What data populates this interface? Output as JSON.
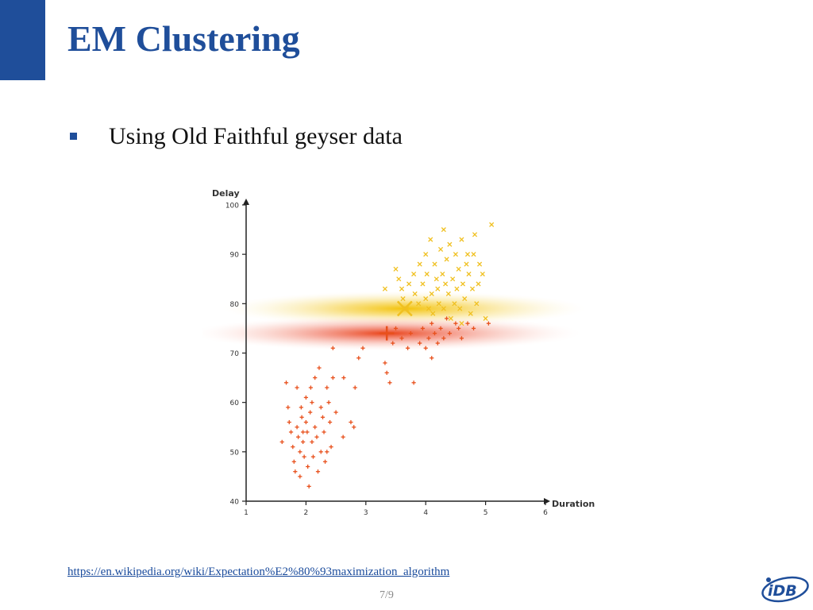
{
  "slide": {
    "title": "EM Clustering",
    "bullets": [
      "Using Old Faithful geyser data"
    ],
    "source_link": "https://en.wikipedia.org/wiki/Expectation%E2%80%93maximization_algorithm",
    "page_number": "7/9",
    "logo_text": "iDB",
    "accent_color": "#1f4e9a"
  },
  "chart_data": {
    "type": "scatter",
    "xlabel": "Duration",
    "ylabel": "Delay",
    "xlim": [
      1,
      6
    ],
    "ylim": [
      40,
      100
    ],
    "x_ticks": [
      1,
      2,
      3,
      4,
      5,
      6
    ],
    "y_ticks": [
      40,
      50,
      60,
      70,
      80,
      90,
      100
    ],
    "grid": false,
    "series": [
      {
        "marker": "plus",
        "color": "#e8501c",
        "center": {
          "x": 3.35,
          "y": 74
        },
        "points": [
          [
            1.6,
            52
          ],
          [
            1.67,
            64
          ],
          [
            1.7,
            59
          ],
          [
            1.72,
            56
          ],
          [
            1.75,
            54
          ],
          [
            1.78,
            51
          ],
          [
            1.8,
            48
          ],
          [
            1.82,
            46
          ],
          [
            1.85,
            63
          ],
          [
            1.85,
            55
          ],
          [
            1.87,
            53
          ],
          [
            1.9,
            50
          ],
          [
            1.9,
            45
          ],
          [
            1.92,
            59
          ],
          [
            1.93,
            57
          ],
          [
            1.95,
            52
          ],
          [
            1.97,
            49
          ],
          [
            2.0,
            61
          ],
          [
            2.0,
            56
          ],
          [
            2.02,
            54
          ],
          [
            2.03,
            47
          ],
          [
            2.05,
            43
          ],
          [
            2.07,
            58
          ],
          [
            2.1,
            60
          ],
          [
            2.1,
            52
          ],
          [
            2.12,
            49
          ],
          [
            2.15,
            65
          ],
          [
            2.15,
            55
          ],
          [
            2.18,
            53
          ],
          [
            2.2,
            46
          ],
          [
            2.22,
            67
          ],
          [
            2.25,
            59
          ],
          [
            2.25,
            50
          ],
          [
            2.28,
            57
          ],
          [
            2.3,
            54
          ],
          [
            2.32,
            48
          ],
          [
            2.35,
            63
          ],
          [
            2.38,
            60
          ],
          [
            2.4,
            56
          ],
          [
            2.42,
            51
          ],
          [
            2.45,
            65
          ],
          [
            2.5,
            58
          ],
          [
            2.62,
            53
          ],
          [
            2.63,
            65
          ],
          [
            2.75,
            56
          ],
          [
            2.8,
            55
          ],
          [
            2.82,
            63
          ],
          [
            2.88,
            69
          ],
          [
            2.95,
            71
          ],
          [
            3.32,
            68
          ],
          [
            3.35,
            66
          ],
          [
            3.4,
            64
          ],
          [
            3.45,
            72
          ],
          [
            3.5,
            75
          ],
          [
            3.6,
            73
          ],
          [
            3.7,
            71
          ],
          [
            3.75,
            74
          ],
          [
            3.8,
            64
          ],
          [
            3.9,
            72
          ],
          [
            3.95,
            75
          ],
          [
            4.0,
            71
          ],
          [
            4.05,
            73
          ],
          [
            4.1,
            76
          ],
          [
            4.15,
            74
          ],
          [
            4.2,
            72
          ],
          [
            4.25,
            75
          ],
          [
            4.3,
            73
          ],
          [
            4.35,
            77
          ],
          [
            4.4,
            74
          ],
          [
            4.5,
            76
          ],
          [
            4.55,
            75
          ],
          [
            4.6,
            73
          ],
          [
            4.7,
            76
          ],
          [
            4.8,
            75
          ],
          [
            5.05,
            76
          ],
          [
            2.45,
            71
          ],
          [
            2.08,
            63
          ],
          [
            1.95,
            54
          ],
          [
            2.35,
            50
          ],
          [
            4.1,
            69
          ]
        ]
      },
      {
        "marker": "cross",
        "color": "#f0c020",
        "center": {
          "x": 3.65,
          "y": 79
        },
        "points": [
          [
            3.32,
            83
          ],
          [
            3.5,
            87
          ],
          [
            3.55,
            85
          ],
          [
            3.6,
            83
          ],
          [
            3.62,
            81
          ],
          [
            3.68,
            79
          ],
          [
            3.72,
            84
          ],
          [
            3.8,
            86
          ],
          [
            3.82,
            82
          ],
          [
            3.88,
            80
          ],
          [
            3.9,
            88
          ],
          [
            3.95,
            84
          ],
          [
            4.0,
            90
          ],
          [
            4.02,
            86
          ],
          [
            4.08,
            93
          ],
          [
            4.1,
            82
          ],
          [
            4.12,
            78
          ],
          [
            4.15,
            88
          ],
          [
            4.18,
            85
          ],
          [
            4.2,
            83
          ],
          [
            4.22,
            80
          ],
          [
            4.25,
            91
          ],
          [
            4.28,
            86
          ],
          [
            4.3,
            79
          ],
          [
            4.33,
            84
          ],
          [
            4.35,
            89
          ],
          [
            4.38,
            82
          ],
          [
            4.4,
            92
          ],
          [
            4.42,
            77
          ],
          [
            4.45,
            85
          ],
          [
            4.48,
            80
          ],
          [
            4.5,
            90
          ],
          [
            4.52,
            83
          ],
          [
            4.55,
            87
          ],
          [
            4.57,
            79
          ],
          [
            4.6,
            93
          ],
          [
            4.62,
            84
          ],
          [
            4.65,
            81
          ],
          [
            4.7,
            90
          ],
          [
            4.72,
            86
          ],
          [
            4.75,
            78
          ],
          [
            4.78,
            83
          ],
          [
            4.8,
            90
          ],
          [
            4.82,
            94
          ],
          [
            4.85,
            80
          ],
          [
            4.88,
            84
          ],
          [
            4.9,
            88
          ],
          [
            4.95,
            86
          ],
          [
            5.0,
            77
          ],
          [
            5.1,
            96
          ],
          [
            4.05,
            79
          ],
          [
            4.3,
            95
          ],
          [
            4.6,
            76
          ],
          [
            4.0,
            81
          ],
          [
            4.68,
            88
          ]
        ]
      }
    ],
    "gaussians": [
      {
        "color": "#f2c400",
        "cx": 3.65,
        "cy": 79,
        "rx_sigma": 0.98,
        "ry_sigma": 0.55
      },
      {
        "color": "#e83b10",
        "cx": 3.35,
        "cy": 74,
        "rx_sigma": 1.05,
        "ry_sigma": 0.55
      }
    ]
  }
}
